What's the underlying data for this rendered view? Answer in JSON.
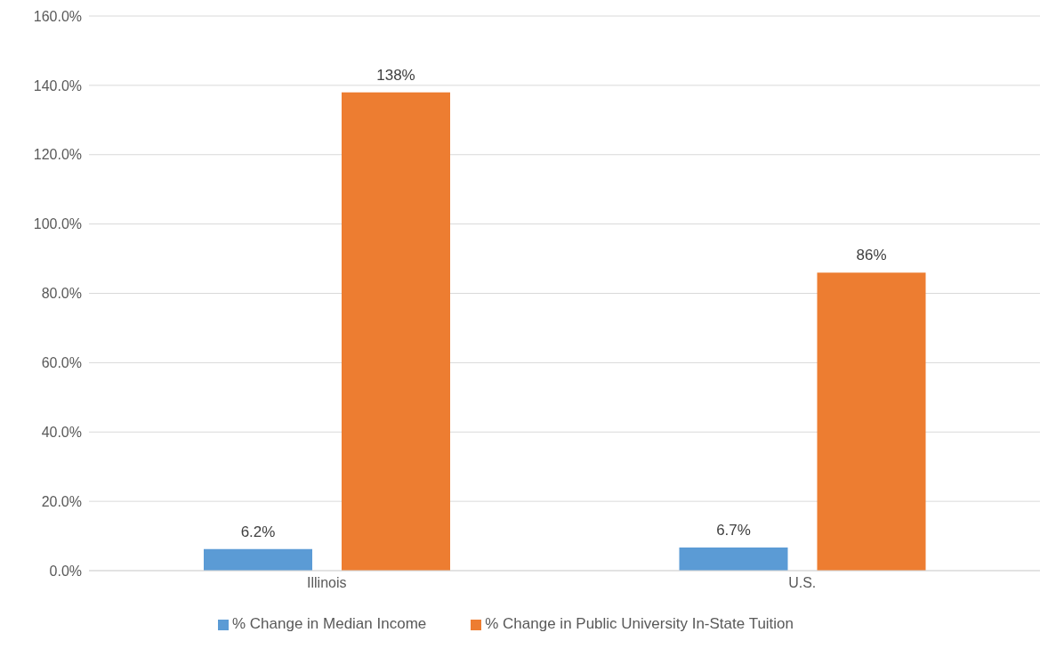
{
  "chart_data": {
    "type": "bar",
    "categories": [
      "Illinois",
      "U.S."
    ],
    "series": [
      {
        "name": "% Change in Median Income",
        "color": "#5b9bd5",
        "values": [
          6.2,
          6.7
        ],
        "value_labels": [
          "6.2%",
          "6.7%"
        ]
      },
      {
        "name": "% Change in Public University In-State Tuition",
        "color": "#ed7d31",
        "values": [
          138,
          86
        ],
        "value_labels": [
          "138%",
          "86%"
        ]
      }
    ],
    "ylim": [
      0,
      160
    ],
    "yticks": [
      {
        "value": 0,
        "label": "0.0%"
      },
      {
        "value": 20,
        "label": "20.0%"
      },
      {
        "value": 40,
        "label": "40.0%"
      },
      {
        "value": 60,
        "label": "60.0%"
      },
      {
        "value": 80,
        "label": "80.0%"
      },
      {
        "value": 100,
        "label": "100.0%"
      },
      {
        "value": 120,
        "label": "120.0%"
      },
      {
        "value": 140,
        "label": "140.0%"
      },
      {
        "value": 160,
        "label": "160.0%"
      }
    ],
    "grid": "y",
    "legend": "bottom"
  }
}
